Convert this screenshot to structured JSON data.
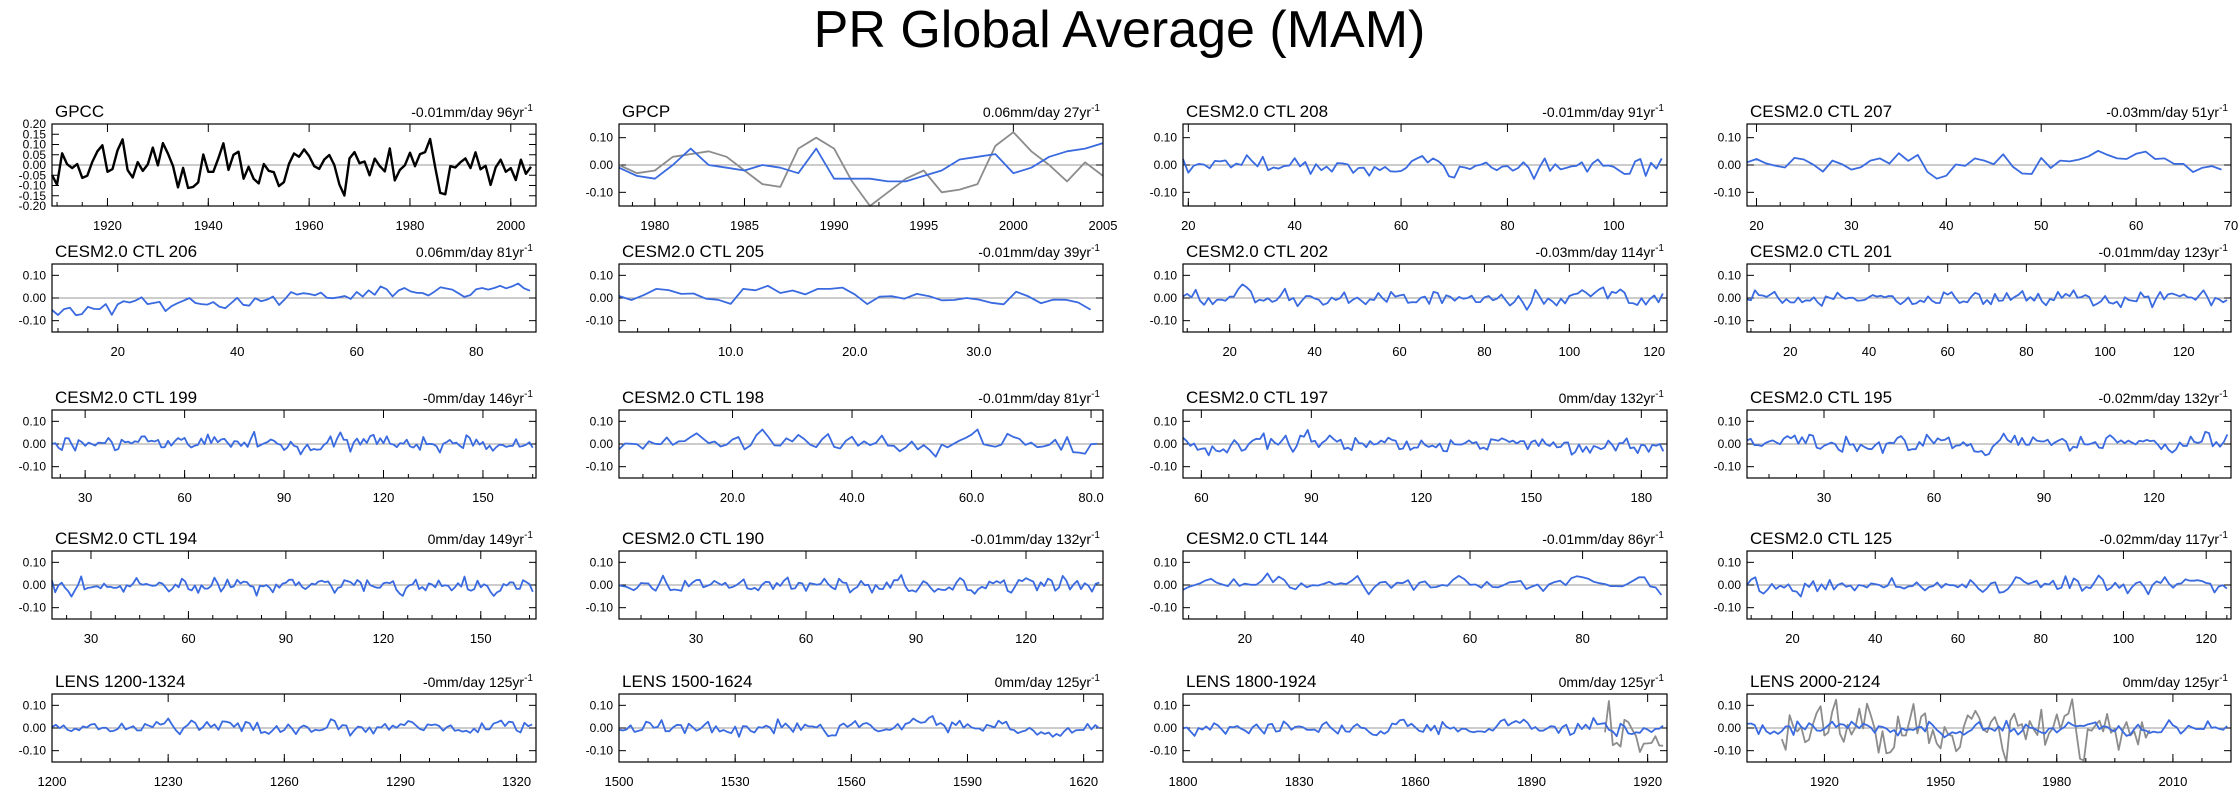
{
  "title": "PR Global Average (MAM)",
  "colors": {
    "obs": "#000000",
    "model": "#3a6ae0",
    "overlay": "#8c8c8c",
    "zero": "#999999"
  },
  "chart_data": [
    {
      "type": "line",
      "title": "GPCC",
      "trend": "-0.01mm/day 96yr",
      "trend_sup": "-1",
      "xlim": [
        1909,
        2005
      ],
      "ylim": [
        -0.2,
        0.2
      ],
      "yticks": [
        0.2,
        0.15,
        0.1,
        0.05,
        0,
        -0.05,
        -0.1,
        -0.15,
        -0.2
      ],
      "ytick_labels": [
        "0.20",
        "0.15",
        "0.10",
        "0.05",
        "0.00",
        "-0.05",
        "-0.10",
        "-0.15",
        "-0.20"
      ],
      "xticks": [
        1920,
        1940,
        1960,
        1980,
        2000
      ],
      "xtick_labels": [
        "1920",
        "1940",
        "1960",
        "1980",
        "2000"
      ],
      "series": [
        {
          "name": "GPCC",
          "color": "#000000",
          "amp": 0.055,
          "x0": 1909,
          "n": 96,
          "seed": 11
        }
      ]
    },
    {
      "type": "line",
      "title": "GPCP",
      "trend": "0.06mm/day 27yr",
      "trend_sup": "-1",
      "xlim": [
        1978,
        2005
      ],
      "ylim": [
        -0.15,
        0.15
      ],
      "yticks": [
        0.1,
        0,
        -0.1
      ],
      "ytick_labels": [
        "0.10",
        "0.00",
        "-0.10"
      ],
      "xticks": [
        1980,
        1985,
        1990,
        1995,
        2000,
        2005
      ],
      "xtick_labels": [
        "1980",
        "1985",
        "1990",
        "1995",
        "2000",
        "2005"
      ],
      "series": [
        {
          "name": "observed",
          "color": "#8c8c8c",
          "x": [
            1978,
            1979,
            1980,
            1981,
            1982,
            1983,
            1984,
            1985,
            1986,
            1987,
            1988,
            1989,
            1990,
            1991,
            1992,
            1993,
            1994,
            1995,
            1996,
            1997,
            1998,
            1999,
            2000,
            2001,
            2002,
            2003,
            2004,
            2005
          ],
          "y": [
            0.0,
            -0.03,
            -0.02,
            0.03,
            0.04,
            0.05,
            0.03,
            -0.02,
            -0.07,
            -0.08,
            0.06,
            0.1,
            0.06,
            -0.06,
            -0.16,
            -0.1,
            -0.05,
            -0.02,
            -0.1,
            -0.09,
            -0.07,
            0.07,
            0.12,
            0.05,
            0.0,
            -0.06,
            0.01,
            -0.04
          ]
        },
        {
          "name": "model",
          "color": "#3a6ae0",
          "x": [
            1978,
            1979,
            1980,
            1981,
            1982,
            1983,
            1984,
            1985,
            1986,
            1987,
            1988,
            1989,
            1990,
            1991,
            1992,
            1993,
            1994,
            1995,
            1996,
            1997,
            1998,
            1999,
            2000,
            2001,
            2002,
            2003,
            2004,
            2005
          ],
          "y": [
            -0.01,
            -0.04,
            -0.05,
            0.0,
            0.06,
            0.0,
            -0.01,
            -0.02,
            0.0,
            -0.01,
            -0.03,
            0.06,
            -0.05,
            -0.05,
            -0.05,
            -0.06,
            -0.06,
            -0.04,
            -0.02,
            0.02,
            0.03,
            0.04,
            -0.03,
            -0.01,
            0.03,
            0.05,
            0.06,
            0.08
          ]
        }
      ]
    },
    {
      "type": "line",
      "title": "CESM2.0 CTL 208",
      "trend": "-0.01mm/day 91yr",
      "trend_sup": "-1",
      "xlim": [
        19,
        110
      ],
      "ylim": [
        -0.15,
        0.15
      ],
      "yticks": [
        0.1,
        0,
        -0.1
      ],
      "ytick_labels": [
        "0.10",
        "0.00",
        "-0.10"
      ],
      "xticks": [
        20,
        40,
        60,
        80,
        100
      ],
      "xtick_labels": [
        "20",
        "40",
        "60",
        "80",
        "100"
      ],
      "series": [
        {
          "name": "model",
          "color": "#3a6ae0",
          "amp": 0.018,
          "x0": 19,
          "n": 91,
          "seed": 21
        }
      ]
    },
    {
      "type": "line",
      "title": "CESM2.0 CTL 207",
      "trend": "-0.03mm/day 51yr",
      "trend_sup": "-1",
      "xlim": [
        19,
        70
      ],
      "ylim": [
        -0.15,
        0.15
      ],
      "yticks": [
        0.1,
        0,
        -0.1
      ],
      "ytick_labels": [
        "0.10",
        "0.00",
        "-0.10"
      ],
      "xticks": [
        20,
        30,
        40,
        50,
        60,
        70
      ],
      "xtick_labels": [
        "20",
        "30",
        "40",
        "50",
        "60",
        "70"
      ],
      "series": [
        {
          "name": "model",
          "color": "#3a6ae0",
          "amp": 0.02,
          "x0": 19,
          "n": 51,
          "seed": 22
        }
      ]
    },
    {
      "type": "line",
      "title": "CESM2.0 CTL 206",
      "trend": "0.06mm/day 81yr",
      "trend_sup": "-1",
      "xlim": [
        9,
        90
      ],
      "ylim": [
        -0.15,
        0.15
      ],
      "yticks": [
        0.1,
        0,
        -0.1
      ],
      "ytick_labels": [
        "0.10",
        "0.00",
        "-0.10"
      ],
      "xticks": [
        20,
        40,
        60,
        80
      ],
      "xtick_labels": [
        "20",
        "40",
        "60",
        "80"
      ],
      "series": [
        {
          "name": "model",
          "color": "#3a6ae0",
          "amp": 0.015,
          "x0": 9,
          "n": 81,
          "seed": 23,
          "trend": 0.07
        }
      ]
    },
    {
      "type": "line",
      "title": "CESM2.0 CTL 205",
      "trend": "-0.01mm/day 39yr",
      "trend_sup": "-1",
      "xlim": [
        1,
        40
      ],
      "ylim": [
        -0.15,
        0.15
      ],
      "yticks": [
        0.1,
        0,
        -0.1
      ],
      "ytick_labels": [
        "0.10",
        "0.00",
        "-0.10"
      ],
      "xticks": [
        10,
        20,
        30
      ],
      "xtick_labels": [
        "10.0",
        "20.0",
        "30.0"
      ],
      "series": [
        {
          "name": "model",
          "color": "#3a6ae0",
          "amp": 0.018,
          "x0": 1,
          "n": 39,
          "seed": 24
        }
      ]
    },
    {
      "type": "line",
      "title": "CESM2.0 CTL 202",
      "trend": "-0.03mm/day 114yr",
      "trend_sup": "-1",
      "xlim": [
        9,
        123
      ],
      "ylim": [
        -0.15,
        0.15
      ],
      "yticks": [
        0.1,
        0,
        -0.1
      ],
      "ytick_labels": [
        "0.10",
        "0.00",
        "-0.10"
      ],
      "xticks": [
        20,
        40,
        60,
        80,
        100,
        120
      ],
      "xtick_labels": [
        "20",
        "40",
        "60",
        "80",
        "100",
        "120"
      ],
      "series": [
        {
          "name": "model",
          "color": "#3a6ae0",
          "amp": 0.018,
          "x0": 9,
          "n": 114,
          "seed": 25
        }
      ]
    },
    {
      "type": "line",
      "title": "CESM2.0 CTL 201",
      "trend": "-0.01mm/day 123yr",
      "trend_sup": "-1",
      "xlim": [
        9,
        132
      ],
      "ylim": [
        -0.15,
        0.15
      ],
      "yticks": [
        0.1,
        0,
        -0.1
      ],
      "ytick_labels": [
        "0.10",
        "0.00",
        "-0.10"
      ],
      "xticks": [
        20,
        40,
        60,
        80,
        100,
        120
      ],
      "xtick_labels": [
        "20",
        "40",
        "60",
        "80",
        "100",
        "120"
      ],
      "series": [
        {
          "name": "model",
          "color": "#3a6ae0",
          "amp": 0.018,
          "x0": 9,
          "n": 123,
          "seed": 26
        }
      ]
    },
    {
      "type": "line",
      "title": "CESM2.0 CTL 199",
      "trend": "-0mm/day 146yr",
      "trend_sup": "-1",
      "xlim": [
        20,
        166
      ],
      "ylim": [
        -0.15,
        0.15
      ],
      "yticks": [
        0.1,
        0,
        -0.1
      ],
      "ytick_labels": [
        "0.10",
        "0.00",
        "-0.10"
      ],
      "xticks": [
        30,
        60,
        90,
        120,
        150
      ],
      "xtick_labels": [
        "30",
        "60",
        "90",
        "120",
        "150"
      ],
      "series": [
        {
          "name": "model",
          "color": "#3a6ae0",
          "amp": 0.018,
          "x0": 20,
          "n": 146,
          "seed": 27
        }
      ]
    },
    {
      "type": "line",
      "title": "CESM2.0 CTL 198",
      "trend": "-0.01mm/day 81yr",
      "trend_sup": "-1",
      "xlim": [
        1,
        82
      ],
      "ylim": [
        -0.15,
        0.15
      ],
      "yticks": [
        0.1,
        0,
        -0.1
      ],
      "ytick_labels": [
        "0.10",
        "0.00",
        "-0.10"
      ],
      "xticks": [
        20,
        40,
        60,
        80
      ],
      "xtick_labels": [
        "20.0",
        "40.0",
        "60.0",
        "80.0"
      ],
      "series": [
        {
          "name": "model",
          "color": "#3a6ae0",
          "amp": 0.02,
          "x0": 1,
          "n": 81,
          "seed": 28
        }
      ]
    },
    {
      "type": "line",
      "title": "CESM2.0 CTL 197",
      "trend": "0mm/day 132yr",
      "trend_sup": "-1",
      "xlim": [
        55,
        187
      ],
      "ylim": [
        -0.15,
        0.15
      ],
      "yticks": [
        0.1,
        0,
        -0.1
      ],
      "ytick_labels": [
        "0.10",
        "0.00",
        "-0.10"
      ],
      "xticks": [
        60,
        90,
        120,
        150,
        180
      ],
      "xtick_labels": [
        "60",
        "90",
        "120",
        "150",
        "180"
      ],
      "series": [
        {
          "name": "model",
          "color": "#3a6ae0",
          "amp": 0.018,
          "x0": 55,
          "n": 132,
          "seed": 29
        }
      ]
    },
    {
      "type": "line",
      "title": "CESM2.0 CTL 195",
      "trend": "-0.02mm/day 132yr",
      "trend_sup": "-1",
      "xlim": [
        9,
        141
      ],
      "ylim": [
        -0.15,
        0.15
      ],
      "yticks": [
        0.1,
        0,
        -0.1
      ],
      "ytick_labels": [
        "0.10",
        "0.00",
        "-0.10"
      ],
      "xticks": [
        30,
        60,
        90,
        120
      ],
      "xtick_labels": [
        "30",
        "60",
        "90",
        "120"
      ],
      "series": [
        {
          "name": "model",
          "color": "#3a6ae0",
          "amp": 0.02,
          "x0": 9,
          "n": 132,
          "seed": 30
        }
      ]
    },
    {
      "type": "line",
      "title": "CESM2.0 CTL 194",
      "trend": "0mm/day 149yr",
      "trend_sup": "-1",
      "xlim": [
        18,
        167
      ],
      "ylim": [
        -0.15,
        0.15
      ],
      "yticks": [
        0.1,
        0,
        -0.1
      ],
      "ytick_labels": [
        "0.10",
        "0.00",
        "-0.10"
      ],
      "xticks": [
        30,
        60,
        90,
        120,
        150
      ],
      "xtick_labels": [
        "30",
        "60",
        "90",
        "120",
        "150"
      ],
      "series": [
        {
          "name": "model",
          "color": "#3a6ae0",
          "amp": 0.017,
          "x0": 18,
          "n": 149,
          "seed": 31
        }
      ]
    },
    {
      "type": "line",
      "title": "CESM2.0 CTL 190",
      "trend": "-0.01mm/day 132yr",
      "trend_sup": "-1",
      "xlim": [
        9,
        141
      ],
      "ylim": [
        -0.15,
        0.15
      ],
      "yticks": [
        0.1,
        0,
        -0.1
      ],
      "ytick_labels": [
        "0.10",
        "0.00",
        "-0.10"
      ],
      "xticks": [
        30,
        60,
        90,
        120
      ],
      "xtick_labels": [
        "30",
        "60",
        "90",
        "120"
      ],
      "series": [
        {
          "name": "model",
          "color": "#3a6ae0",
          "amp": 0.018,
          "x0": 9,
          "n": 132,
          "seed": 32
        }
      ]
    },
    {
      "type": "line",
      "title": "CESM2.0 CTL 144",
      "trend": "-0.01mm/day 86yr",
      "trend_sup": "-1",
      "xlim": [
        9,
        95
      ],
      "ylim": [
        -0.15,
        0.15
      ],
      "yticks": [
        0.1,
        0,
        -0.1
      ],
      "ytick_labels": [
        "0.10",
        "0.00",
        "-0.10"
      ],
      "xticks": [
        20,
        40,
        60,
        80
      ],
      "xtick_labels": [
        "20",
        "40",
        "60",
        "80"
      ],
      "series": [
        {
          "name": "model",
          "color": "#3a6ae0",
          "amp": 0.017,
          "x0": 9,
          "n": 86,
          "seed": 33
        }
      ]
    },
    {
      "type": "line",
      "title": "CESM2.0 CTL 125",
      "trend": "-0.02mm/day 117yr",
      "trend_sup": "-1",
      "xlim": [
        9,
        126
      ],
      "ylim": [
        -0.15,
        0.15
      ],
      "yticks": [
        0.1,
        0,
        -0.1
      ],
      "ytick_labels": [
        "0.10",
        "0.00",
        "-0.10"
      ],
      "xticks": [
        20,
        40,
        60,
        80,
        100,
        120
      ],
      "xtick_labels": [
        "20",
        "40",
        "60",
        "80",
        "100",
        "120"
      ],
      "series": [
        {
          "name": "model",
          "color": "#3a6ae0",
          "amp": 0.018,
          "x0": 9,
          "n": 117,
          "seed": 34
        }
      ]
    },
    {
      "type": "line",
      "title": "LENS 1200-1324",
      "trend": "-0mm/day 125yr",
      "trend_sup": "-1",
      "xlim": [
        1200,
        1325
      ],
      "ylim": [
        -0.15,
        0.15
      ],
      "yticks": [
        0.1,
        0,
        -0.1
      ],
      "ytick_labels": [
        "0.10",
        "0.00",
        "-0.10"
      ],
      "xticks": [
        1200,
        1230,
        1260,
        1290,
        1320
      ],
      "xtick_labels": [
        "1200",
        "1230",
        "1260",
        "1290",
        "1320"
      ],
      "series": [
        {
          "name": "model",
          "color": "#3a6ae0",
          "amp": 0.016,
          "x0": 1200,
          "n": 125,
          "seed": 35
        }
      ]
    },
    {
      "type": "line",
      "title": "LENS 1500-1624",
      "trend": "0mm/day 125yr",
      "trend_sup": "-1",
      "xlim": [
        1500,
        1625
      ],
      "ylim": [
        -0.15,
        0.15
      ],
      "yticks": [
        0.1,
        0,
        -0.1
      ],
      "ytick_labels": [
        "0.10",
        "0.00",
        "-0.10"
      ],
      "xticks": [
        1500,
        1530,
        1560,
        1590,
        1620
      ],
      "xtick_labels": [
        "1500",
        "1530",
        "1560",
        "1590",
        "1620"
      ],
      "series": [
        {
          "name": "model",
          "color": "#3a6ae0",
          "amp": 0.016,
          "x0": 1500,
          "n": 125,
          "seed": 36
        }
      ]
    },
    {
      "type": "line",
      "title": "LENS 1800-1924",
      "trend": "0mm/day 125yr",
      "trend_sup": "-1",
      "xlim": [
        1800,
        1925
      ],
      "ylim": [
        -0.15,
        0.15
      ],
      "yticks": [
        0.1,
        0,
        -0.1
      ],
      "ytick_labels": [
        "0.10",
        "0.00",
        "-0.10"
      ],
      "xticks": [
        1800,
        1830,
        1860,
        1890,
        1920
      ],
      "xtick_labels": [
        "1800",
        "1830",
        "1860",
        "1890",
        "1920"
      ],
      "series": [
        {
          "name": "observed",
          "color": "#8c8c8c",
          "amp": 0.06,
          "x0": 1909,
          "n": 16,
          "seed": 12
        },
        {
          "name": "model",
          "color": "#3a6ae0",
          "amp": 0.016,
          "x0": 1800,
          "n": 125,
          "seed": 37
        }
      ]
    },
    {
      "type": "line",
      "title": "LENS 2000-2124",
      "trend": "0mm/day 125yr",
      "trend_sup": "-1",
      "xlim": [
        1900,
        2025
      ],
      "ylim": [
        -0.15,
        0.15
      ],
      "yticks": [
        0.1,
        0,
        -0.1
      ],
      "ytick_labels": [
        "0.10",
        "0.00",
        "-0.10"
      ],
      "xticks": [
        1920,
        1950,
        1980,
        2010
      ],
      "xtick_labels": [
        "1920",
        "1950",
        "1980",
        "2010"
      ],
      "series": [
        {
          "name": "observed",
          "color": "#8c8c8c",
          "amp": 0.055,
          "x0": 1909,
          "n": 96,
          "seed": 11
        },
        {
          "name": "model",
          "color": "#3a6ae0",
          "amp": 0.016,
          "x0": 1900,
          "n": 125,
          "seed": 38
        }
      ]
    }
  ]
}
